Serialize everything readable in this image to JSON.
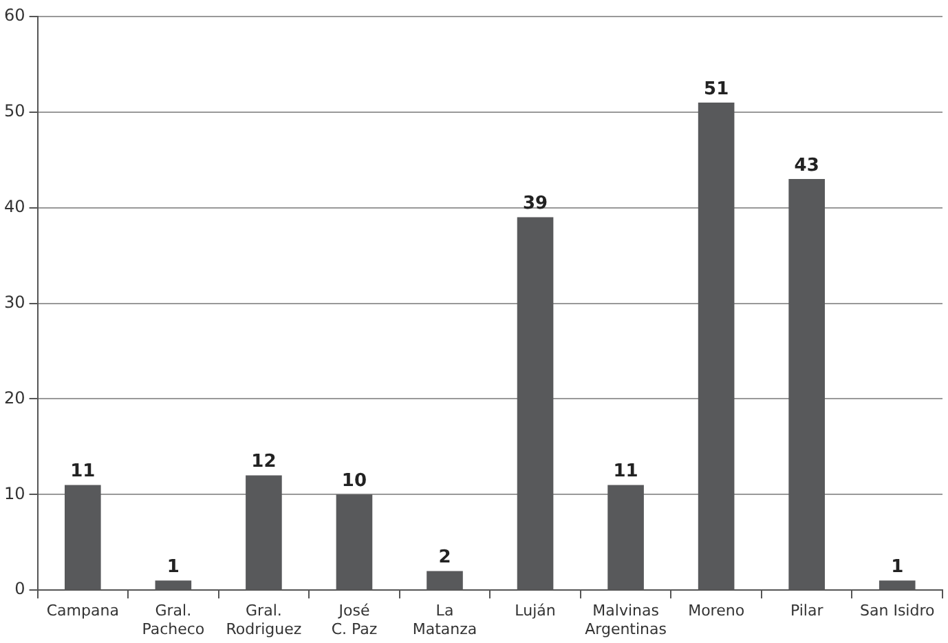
{
  "chart_data": {
    "type": "bar",
    "categories": [
      "Campana",
      "Gral.\nPacheco",
      "Gral.\nRodriguez",
      "José\nC. Paz",
      "La\nMatanza",
      "Luján",
      "Malvinas\nArgentinas",
      "Moreno",
      "Pilar",
      "San Isidro"
    ],
    "values": [
      11,
      1,
      12,
      10,
      2,
      39,
      11,
      51,
      43,
      1
    ],
    "color": "#58595b",
    "ylim": [
      0,
      60
    ],
    "yticks": [
      0,
      10,
      20,
      30,
      40,
      50,
      60
    ],
    "grid": "y",
    "data_labels": true
  }
}
